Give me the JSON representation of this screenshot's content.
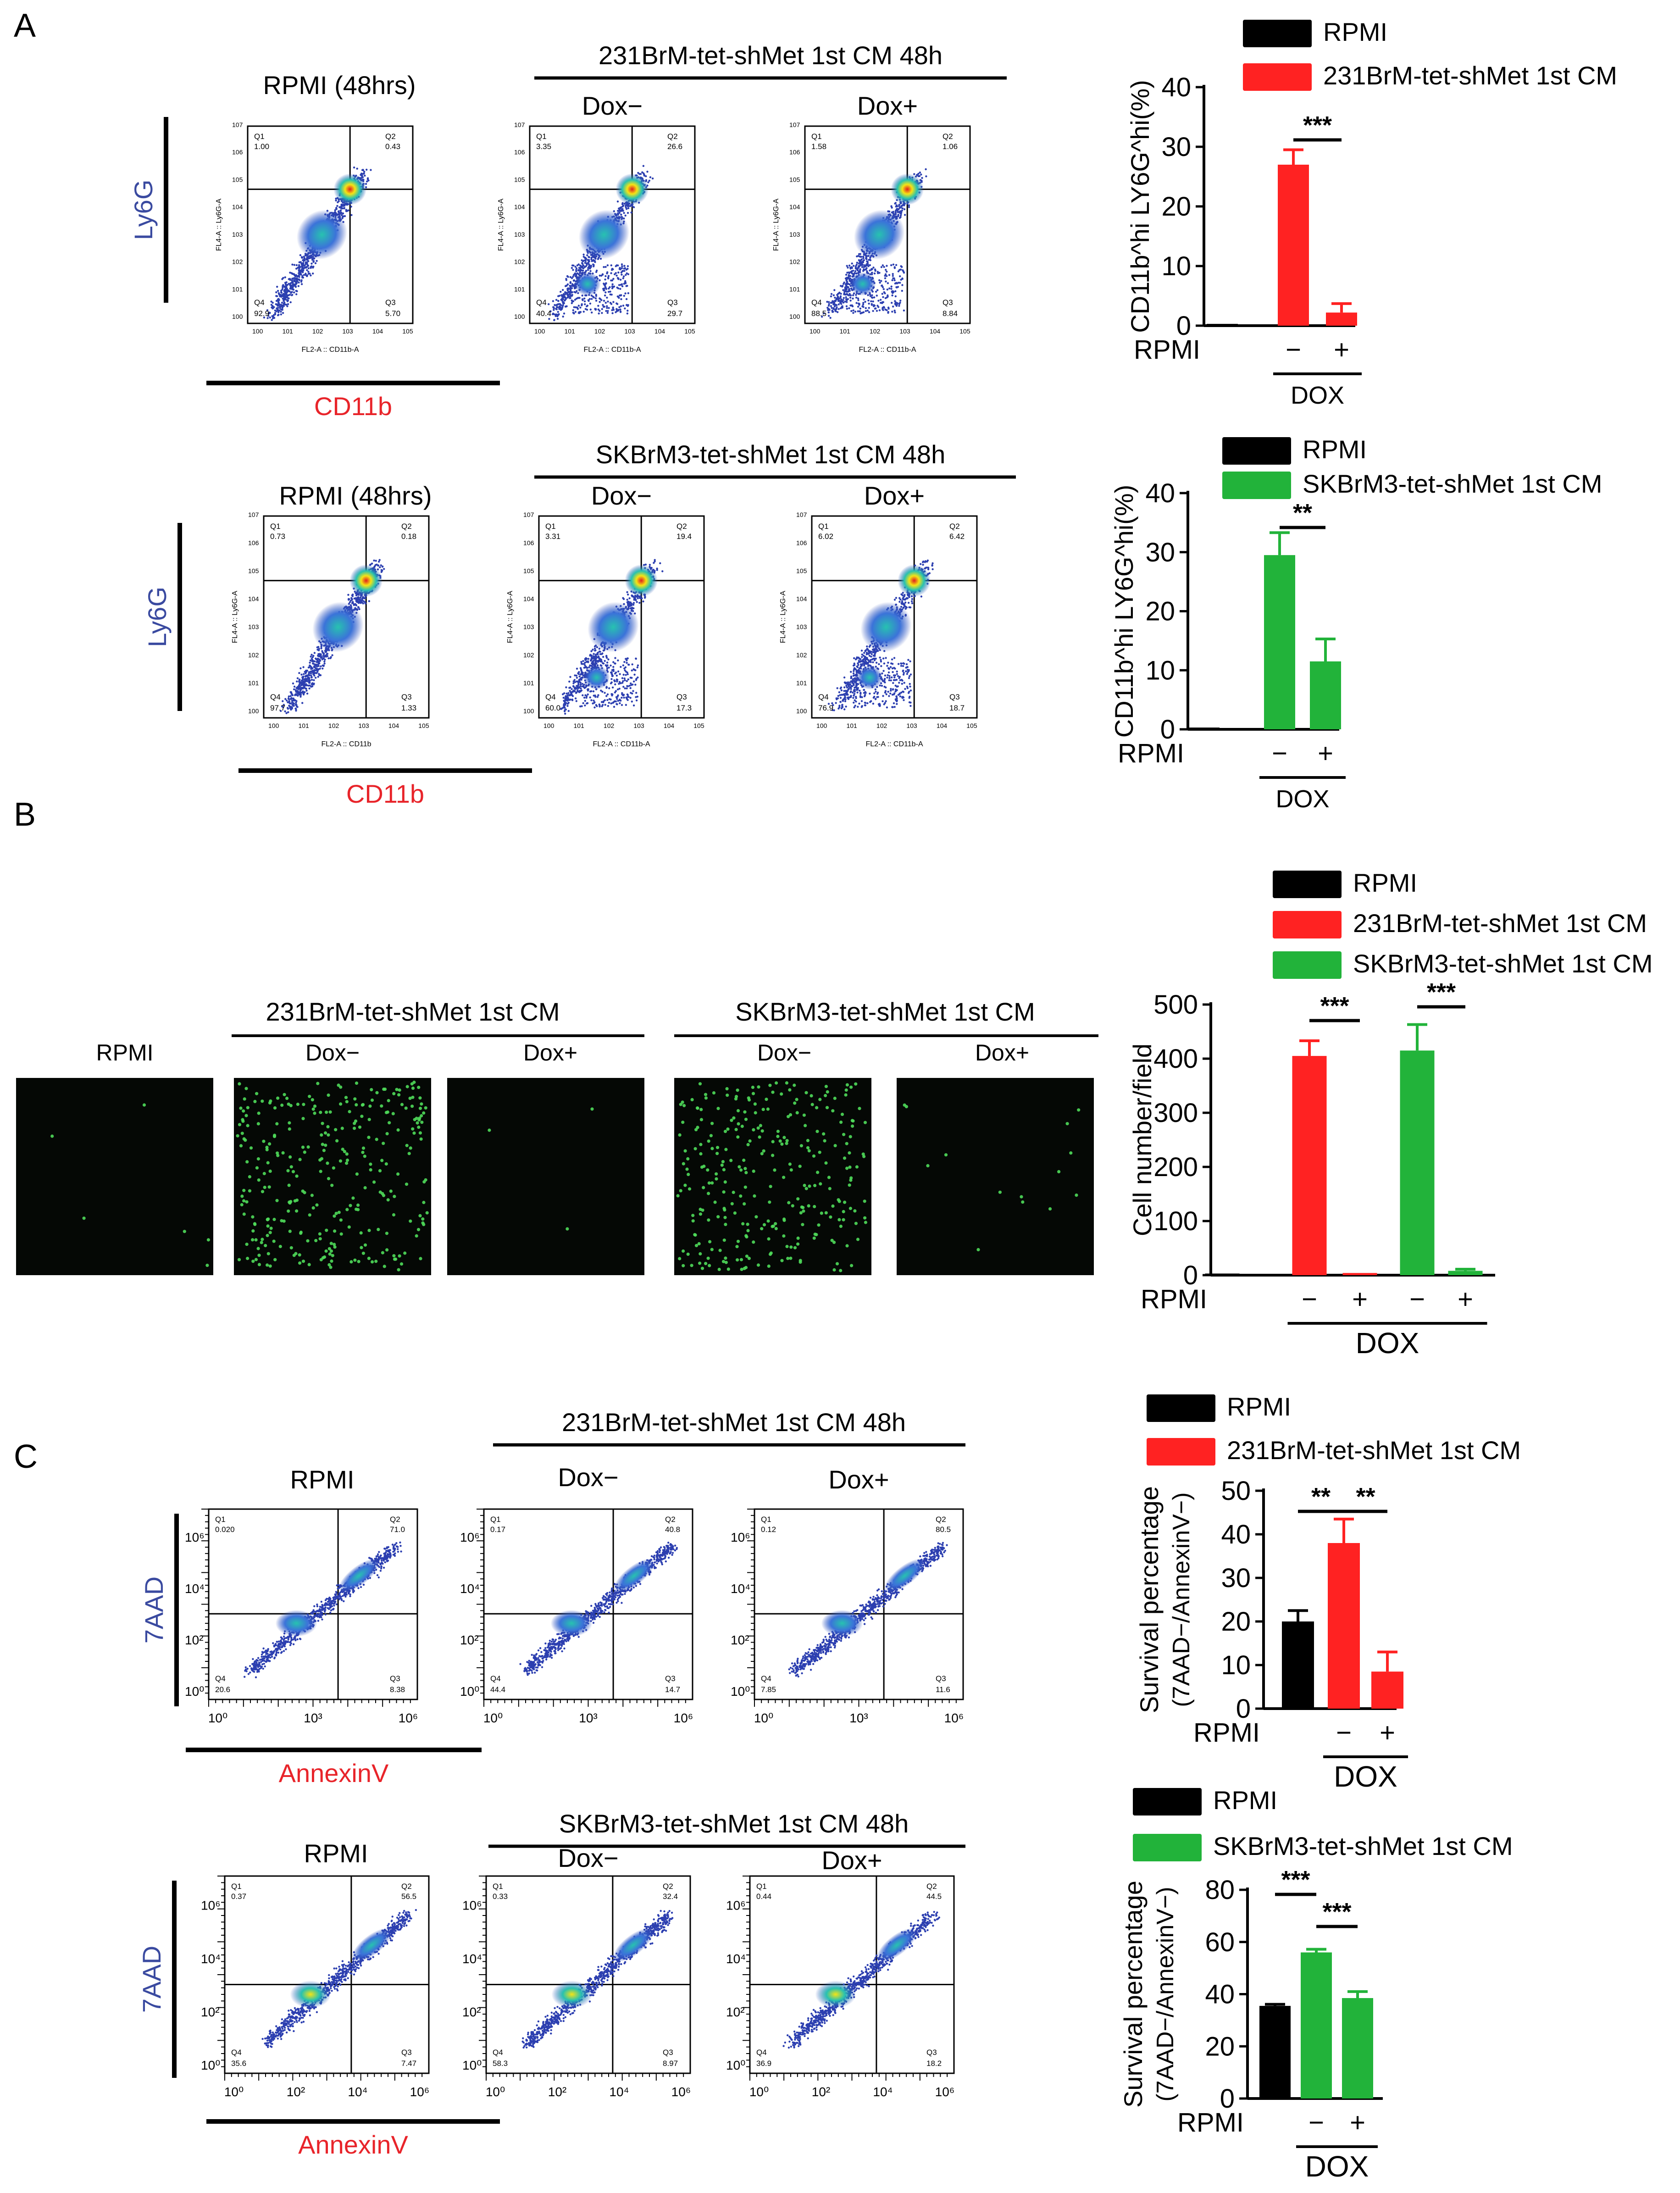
{
  "panel_letters": [
    "A",
    "B",
    "C"
  ],
  "colors": {
    "rpmi": "#000000",
    "bt231": "#ff2222",
    "skbr": "#22b33a",
    "axis_blue": "#3a4aa0",
    "axis_red": "#e8242a"
  },
  "panelA": {
    "rows": [
      {
        "row_title": "231BrM-tet-shMet 1st CM 48h",
        "y_axis_label": "Ly6G",
        "x_axis_label": "CD11b",
        "plots": [
          {
            "title": "RPMI (48hrs)",
            "q1": "Q1",
            "q1v": "1.00",
            "q2": "Q2",
            "q2v": "0.43",
            "q3": "Q3",
            "q3v": "5.70",
            "q4": "Q4",
            "q4v": "92.9",
            "xaxis": "FL2-A :: CD11b-A",
            "yaxis": "FL4-A :: Ly6G-A"
          },
          {
            "title": "Dox−",
            "q1": "Q1",
            "q1v": "3.35",
            "q2": "Q2",
            "q2v": "26.6",
            "q3": "Q3",
            "q3v": "29.7",
            "q4": "Q4",
            "q4v": "40.4",
            "xaxis": "FL2-A :: CD11b-A",
            "yaxis": "FL4-A :: Ly6G-A"
          },
          {
            "title": "Dox+",
            "q1": "Q1",
            "q1v": "1.58",
            "q2": "Q2",
            "q2v": "1.06",
            "q3": "Q3",
            "q3v": "8.84",
            "q4": "Q4",
            "q4v": "88.5",
            "xaxis": "FL2-A :: CD11b-A",
            "yaxis": "FL4-A :: Ly6G-A"
          }
        ]
      },
      {
        "row_title": "SKBrM3-tet-shMet 1st CM 48h",
        "y_axis_label": "Ly6G",
        "x_axis_label": "CD11b",
        "plots": [
          {
            "title": "RPMI (48hrs)",
            "q1": "Q1",
            "q1v": "0.73",
            "q2": "Q2",
            "q2v": "0.18",
            "q3": "Q3",
            "q3v": "1.33",
            "q4": "Q4",
            "q4v": "97.7",
            "xaxis": "FL2-A :: CD11b",
            "yaxis": "FL4-A :: Ly6G-A"
          },
          {
            "title": "Dox−",
            "q1": "Q1",
            "q1v": "3.31",
            "q2": "Q2",
            "q2v": "19.4",
            "q3": "Q3",
            "q3v": "17.3",
            "q4": "Q4",
            "q4v": "60.0",
            "xaxis": "FL2-A :: CD11b-A",
            "yaxis": "FL4-A :: Ly6G-A"
          },
          {
            "title": "Dox+",
            "q1": "Q1",
            "q1v": "6.02",
            "q2": "Q2",
            "q2v": "6.42",
            "q3": "Q3",
            "q3v": "18.7",
            "q4": "Q4",
            "q4v": "76.9",
            "xaxis": "FL2-A :: CD11b-A",
            "yaxis": "FL4-A :: Ly6G-A"
          }
        ]
      }
    ]
  },
  "panelB": {
    "groups": [
      {
        "title": "231BrM-tet-shMet 1st CM"
      },
      {
        "title": "SKBrM3-tet-shMet 1st CM"
      }
    ],
    "images": [
      {
        "label": "RPMI",
        "dots": 6
      },
      {
        "label": "Dox−",
        "dots": 320
      },
      {
        "label": "Dox+",
        "dots": 3
      },
      {
        "label": "Dox−",
        "dots": 300
      },
      {
        "label": "Dox+",
        "dots": 14
      }
    ]
  },
  "panelC": {
    "rows": [
      {
        "row_title": "231BrM-tet-shMet 1st CM 48h",
        "y_axis_label": "7AAD",
        "x_axis_label": "AnnexinV",
        "plots": [
          {
            "title": "RPMI",
            "q1": "Q1",
            "q1v": "0.020",
            "q2": "Q2",
            "q2v": "71.0",
            "q3": "Q3",
            "q3v": "8.38",
            "q4": "Q4",
            "q4v": "20.6"
          },
          {
            "title": "Dox−",
            "q1": "Q1",
            "q1v": "0.17",
            "q2": "Q2",
            "q2v": "40.8",
            "q3": "Q3",
            "q3v": "14.7",
            "q4": "Q4",
            "q4v": "44.4"
          },
          {
            "title": "Dox+",
            "q1": "Q1",
            "q1v": "0.12",
            "q2": "Q2",
            "q2v": "80.5",
            "q3": "Q3",
            "q3v": "11.6",
            "q4": "Q4",
            "q4v": "7.85"
          }
        ]
      },
      {
        "row_title": "SKBrM3-tet-shMet 1st CM 48h",
        "y_axis_label": "7AAD",
        "x_axis_label": "AnnexinV",
        "plots": [
          {
            "title": "RPMI",
            "q1": "Q1",
            "q1v": "0.37",
            "q2": "Q2",
            "q2v": "56.5",
            "q3": "Q3",
            "q3v": "7.47",
            "q4": "Q4",
            "q4v": "35.6"
          },
          {
            "title": "Dox−",
            "q1": "Q1",
            "q1v": "0.33",
            "q2": "Q2",
            "q2v": "32.4",
            "q3": "Q3",
            "q3v": "8.97",
            "q4": "Q4",
            "q4v": "58.3"
          },
          {
            "title": "Dox+",
            "q1": "Q1",
            "q1v": "0.44",
            "q2": "Q2",
            "q2v": "44.5",
            "q3": "Q3",
            "q3v": "18.2",
            "q4": "Q4",
            "q4v": "36.9"
          }
        ]
      }
    ]
  },
  "chart_data": [
    {
      "id": "A1",
      "type": "bar",
      "categories": [
        "RPMI",
        "−",
        "+"
      ],
      "group_label": "DOX",
      "series": [
        {
          "name": "RPMI / 231BrM-tet-shMet 1st CM",
          "values": [
            0.3,
            27,
            2.2
          ],
          "errors": [
            0,
            2.5,
            1.5
          ],
          "colors": [
            "#000000",
            "#ff2222",
            "#ff2222"
          ]
        }
      ],
      "legend": [
        "RPMI",
        "231BrM-tet-shMet 1st CM"
      ],
      "ylabel": "CD11b^hi LY6G^hi(%)",
      "ylim": [
        0,
        40
      ],
      "yticks": [
        0,
        10,
        20,
        30,
        40
      ],
      "significance": [
        {
          "from": 1,
          "to": 2,
          "label": "***"
        }
      ]
    },
    {
      "id": "A2",
      "type": "bar",
      "categories": [
        "RPMI",
        "−",
        "+"
      ],
      "group_label": "DOX",
      "series": [
        {
          "name": "RPMI / SKBrM3-tet-shMet 1st CM",
          "values": [
            0.3,
            29.5,
            11.5
          ],
          "errors": [
            0,
            3.8,
            3.8
          ],
          "colors": [
            "#000000",
            "#22b33a",
            "#22b33a"
          ]
        }
      ],
      "legend": [
        "RPMI",
        "SKBrM3-tet-shMet 1st CM"
      ],
      "ylabel": "CD11b^hi LY6G^hi(%)",
      "ylim": [
        0,
        40
      ],
      "yticks": [
        0,
        10,
        20,
        30,
        40
      ],
      "significance": [
        {
          "from": 1,
          "to": 2,
          "label": "**"
        }
      ]
    },
    {
      "id": "B",
      "type": "bar",
      "categories": [
        "RPMI",
        "−",
        "+",
        "−",
        "+"
      ],
      "group_label": "DOX",
      "series": [
        {
          "name": "Cell number/field",
          "values": [
            3,
            405,
            4,
            415,
            8
          ],
          "errors": [
            0,
            28,
            0,
            48,
            3
          ],
          "colors": [
            "#000000",
            "#ff2222",
            "#ff2222",
            "#22b33a",
            "#22b33a"
          ]
        }
      ],
      "legend": [
        "RPMI",
        "231BrM-tet-shMet 1st CM",
        "SKBrM3-tet-shMet 1st CM"
      ],
      "ylabel": "Cell number/field",
      "ylim": [
        0,
        500
      ],
      "yticks": [
        0,
        100,
        200,
        300,
        400,
        500
      ],
      "significance": [
        {
          "from": 1,
          "to": 2,
          "label": "***"
        },
        {
          "from": 3,
          "to": 4,
          "label": "***"
        }
      ]
    },
    {
      "id": "C1",
      "type": "bar",
      "categories": [
        "RPMI",
        "−",
        "+"
      ],
      "group_label": "DOX",
      "series": [
        {
          "name": "Survival percentage",
          "values": [
            20,
            38,
            8.5
          ],
          "errors": [
            2.5,
            5.5,
            4.5
          ],
          "colors": [
            "#000000",
            "#ff2222",
            "#ff2222"
          ]
        }
      ],
      "legend": [
        "RPMI",
        "231BrM-tet-shMet 1st CM"
      ],
      "ylabel": "Survival percentage",
      "ylabel2": "(7AAD−/AnnexinV−)",
      "ylim": [
        0,
        50
      ],
      "yticks": [
        0,
        10,
        20,
        30,
        40,
        50
      ],
      "significance": [
        {
          "from": 0,
          "to": 1,
          "label": "**"
        },
        {
          "from": 1,
          "to": 2,
          "label": "**"
        }
      ]
    },
    {
      "id": "C2",
      "type": "bar",
      "categories": [
        "RPMI",
        "−",
        "+"
      ],
      "group_label": "DOX",
      "series": [
        {
          "name": "Survival percentage",
          "values": [
            35.5,
            56,
            38.5
          ],
          "errors": [
            0.6,
            1.2,
            2.5
          ],
          "colors": [
            "#000000",
            "#22b33a",
            "#22b33a"
          ]
        }
      ],
      "legend": [
        "RPMI",
        "SKBrM3-tet-shMet 1st CM"
      ],
      "ylabel": "Survival percentage",
      "ylabel2": "(7AAD−/AnnexinV−)",
      "ylim": [
        0,
        80
      ],
      "yticks": [
        0,
        20,
        40,
        60,
        80
      ],
      "significance": [
        {
          "from": 0,
          "to": 1,
          "label": "***"
        },
        {
          "from": 1,
          "to": 2,
          "label": "***"
        }
      ]
    }
  ]
}
